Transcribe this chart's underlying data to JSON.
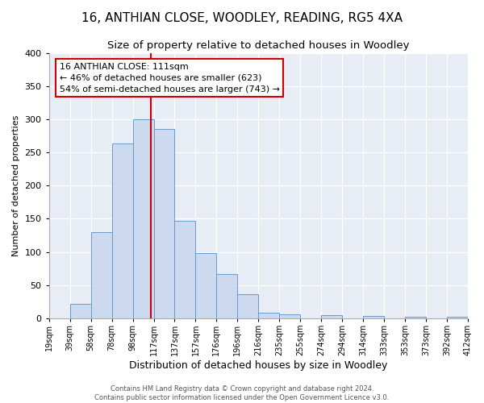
{
  "title": "16, ANTHIAN CLOSE, WOODLEY, READING, RG5 4XA",
  "subtitle": "Size of property relative to detached houses in Woodley",
  "xlabel": "Distribution of detached houses by size in Woodley",
  "ylabel": "Number of detached properties",
  "bin_edges": [
    0,
    1,
    2,
    3,
    4,
    5,
    6,
    7,
    8,
    9,
    10,
    11,
    12,
    13,
    14,
    15,
    16,
    17,
    18,
    19,
    20
  ],
  "bin_heights": [
    0,
    22,
    130,
    263,
    300,
    285,
    147,
    98,
    67,
    37,
    9,
    6,
    0,
    5,
    0,
    4,
    0,
    3,
    0,
    2
  ],
  "tick_labels": [
    "19sqm",
    "39sqm",
    "58sqm",
    "78sqm",
    "98sqm",
    "117sqm",
    "137sqm",
    "157sqm",
    "176sqm",
    "196sqm",
    "216sqm",
    "235sqm",
    "255sqm",
    "274sqm",
    "294sqm",
    "314sqm",
    "333sqm",
    "353sqm",
    "373sqm",
    "392sqm",
    "412sqm"
  ],
  "bar_color": "#ccd9ee",
  "bar_edge_color": "#6699cc",
  "vline_x": 4.85,
  "vline_color": "#cc0000",
  "ylim": [
    0,
    400
  ],
  "yticks": [
    0,
    50,
    100,
    150,
    200,
    250,
    300,
    350,
    400
  ],
  "annotation_text": "16 ANTHIAN CLOSE: 111sqm\n← 46% of detached houses are smaller (623)\n54% of semi-detached houses are larger (743) →",
  "annotation_box_facecolor": "#ffffff",
  "annotation_box_edgecolor": "#cc0000",
  "footer_line1": "Contains HM Land Registry data © Crown copyright and database right 2024.",
  "footer_line2": "Contains public sector information licensed under the Open Government Licence v3.0.",
  "background_color": "#e8edf5",
  "fig_background_color": "#ffffff",
  "title_fontsize": 11,
  "subtitle_fontsize": 9.5,
  "xlabel_fontsize": 9,
  "ylabel_fontsize": 8,
  "annot_fontsize": 8,
  "footer_fontsize": 6
}
